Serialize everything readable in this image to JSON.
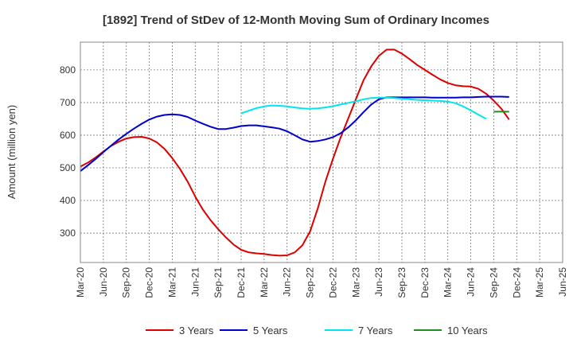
{
  "chart_data": {
    "type": "line",
    "title": "[1892]  Trend of StDev of 12-Month Moving Sum of Ordinary Incomes",
    "xlabel": "",
    "ylabel": "Amount (million yen)",
    "ylim": [
      210,
      885
    ],
    "yticks": [
      300,
      400,
      500,
      600,
      700,
      800
    ],
    "xticks": [
      "Mar-20",
      "Jun-20",
      "Sep-20",
      "Dec-20",
      "Mar-21",
      "Jun-21",
      "Sep-21",
      "Dec-21",
      "Mar-22",
      "Jun-22",
      "Sep-22",
      "Dec-22",
      "Mar-23",
      "Jun-23",
      "Sep-23",
      "Dec-23",
      "Mar-24",
      "Jun-24",
      "Sep-24",
      "Dec-24",
      "Mar-25",
      "Jun-25"
    ],
    "grid": true,
    "legend_position": "bottom",
    "series": [
      {
        "name": "3 Years",
        "color": "#dd0000",
        "start_index": 0,
        "values": [
          504,
          516,
          532,
          550,
          567,
          580,
          590,
          594,
          595,
          590,
          578,
          558,
          530,
          497,
          458,
          412,
          372,
          340,
          312,
          287,
          265,
          249,
          241,
          238,
          236,
          233,
          231,
          232,
          241,
          263,
          305,
          375,
          457,
          528,
          593,
          652,
          711,
          769,
          811,
          843,
          862,
          862,
          850,
          833,
          815,
          800,
          785,
          771,
          760,
          753,
          750,
          749,
          742,
          727,
          706,
          681,
          648
        ]
      },
      {
        "name": "5 Years",
        "color": "#0000cc",
        "start_index": 0,
        "values": [
          490,
          508,
          527,
          548,
          568,
          587,
          604,
          620,
          635,
          648,
          657,
          662,
          664,
          662,
          656,
          645,
          635,
          626,
          619,
          619,
          623,
          628,
          630,
          630,
          627,
          624,
          620,
          612,
          600,
          587,
          580,
          582,
          587,
          594,
          606,
          624,
          646,
          671,
          694,
          710,
          716,
          716,
          716,
          716,
          716,
          716,
          715,
          715,
          715,
          715,
          716,
          716,
          717,
          718,
          718,
          718,
          717
        ]
      },
      {
        "name": "7 Years",
        "color": "#00e5ee",
        "start_index": 21,
        "values": [
          667,
          675,
          683,
          688,
          691,
          690,
          688,
          685,
          682,
          681,
          682,
          685,
          689,
          694,
          699,
          704,
          710,
          714,
          715,
          715,
          714,
          712,
          710,
          708,
          707,
          706,
          705,
          703,
          698,
          688,
          676,
          663,
          650
        ]
      },
      {
        "name": "10 Years",
        "color": "#228b22",
        "start_index": 54,
        "values": [
          672,
          672,
          672
        ]
      }
    ]
  }
}
